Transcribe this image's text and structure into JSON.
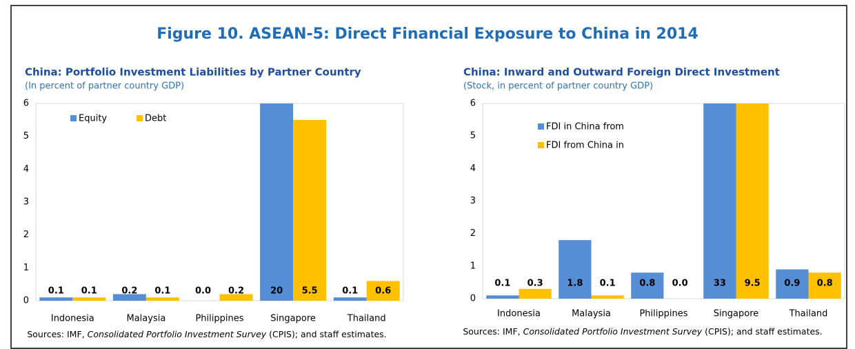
{
  "title": "Figure 10. ASEAN-5: Direct Financial Exposure to China in 2014",
  "chart_data": [
    {
      "type": "bar",
      "title": "China: Portfolio Investment Liabilities by Partner Country",
      "subtitle": "(In percent of partner country GDP)",
      "categories": [
        "Indonesia",
        "Malaysia",
        "Philippines",
        "Singapore",
        "Thailand"
      ],
      "series": [
        {
          "name": "Equity",
          "color": "#558ed5",
          "values": [
            0.1,
            0.2,
            0.0,
            20,
            0.1
          ],
          "value_labels": [
            "0.1",
            "0.2",
            "0.0",
            "20",
            "0.1"
          ]
        },
        {
          "name": "Debt",
          "color": "#ffc000",
          "values": [
            0.1,
            0.1,
            0.2,
            5.5,
            0.6
          ],
          "value_labels": [
            "0.1",
            "0.1",
            "0.2",
            "5.5",
            "0.6"
          ]
        }
      ],
      "ylim": [
        0,
        6
      ],
      "yticks": [
        0,
        1,
        2,
        3,
        4,
        5,
        6
      ],
      "grid": false,
      "legend": "upper left",
      "legend_orientation": "horizontal",
      "source": {
        "prefix": "Sources: IMF, ",
        "italic": "Consolidated Portfolio Investment Survey",
        "suffix": " (CPIS); and staff estimates."
      }
    },
    {
      "type": "bar",
      "title": "China: Inward and Outward Foreign Direct  Investment",
      "subtitle": "(Stock, in percent of partner country GDP)",
      "categories": [
        "Indonesia",
        "Malaysia",
        "Philippines",
        "Singapore",
        "Thailand"
      ],
      "series": [
        {
          "name": "FDI in China from",
          "color": "#558ed5",
          "values": [
            0.1,
            1.8,
            0.8,
            33,
            0.9
          ],
          "value_labels": [
            "0.1",
            "1.8",
            "0.8",
            "33",
            "0.9"
          ]
        },
        {
          "name": "FDI from China in",
          "color": "#ffc000",
          "values": [
            0.3,
            0.1,
            0.0,
            9.5,
            0.8
          ],
          "value_labels": [
            "0.3",
            "0.1",
            "0.0",
            "9.5",
            "0.8"
          ]
        }
      ],
      "ylim": [
        0,
        6
      ],
      "yticks": [
        0,
        1,
        2,
        3,
        4,
        5,
        6
      ],
      "grid": false,
      "legend": "upper left",
      "legend_orientation": "vertical",
      "source": {
        "prefix": "Sources: IMF, ",
        "italic": "Consolidated Portfolio Investment Survey",
        "suffix": " (CPIS); and staff estimates."
      }
    }
  ]
}
